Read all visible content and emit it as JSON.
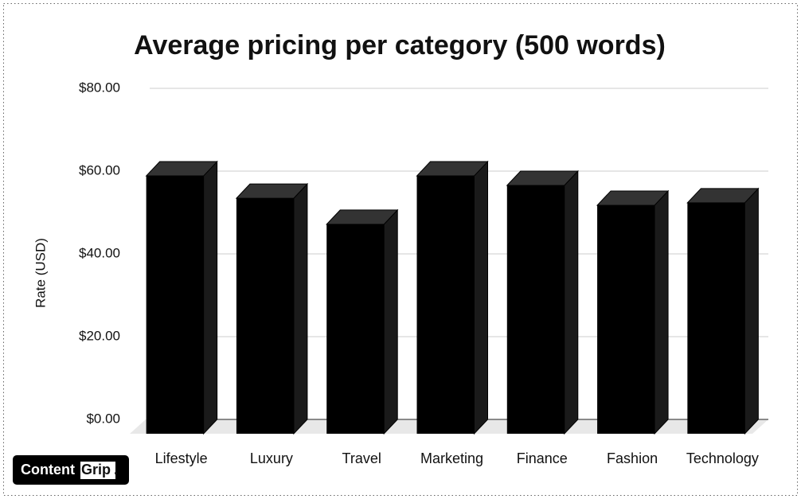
{
  "chart_data": {
    "type": "bar3d",
    "title": "Average pricing per category (500 words)",
    "y_label": "Rate (USD)",
    "categories": [
      "Lifestyle",
      "Luxury",
      "Travel",
      "Marketing",
      "Finance",
      "Fashion",
      "Technology"
    ],
    "values": [
      62.3,
      56.9,
      50.6,
      62.3,
      60,
      55.2,
      55.8
    ],
    "color": "#000000",
    "ylim": [
      0,
      80
    ],
    "yticks": [
      {
        "value": 0,
        "label": "$0.00"
      },
      {
        "value": 20,
        "label": "$20.00"
      },
      {
        "value": 40,
        "label": "$40.00"
      },
      {
        "value": 60,
        "label": "$60.00"
      },
      {
        "value": 80,
        "label": "$80.00"
      }
    ],
    "grid": true
  },
  "brand": {
    "main": "Content",
    "accent": "Grip",
    "dot": "."
  }
}
